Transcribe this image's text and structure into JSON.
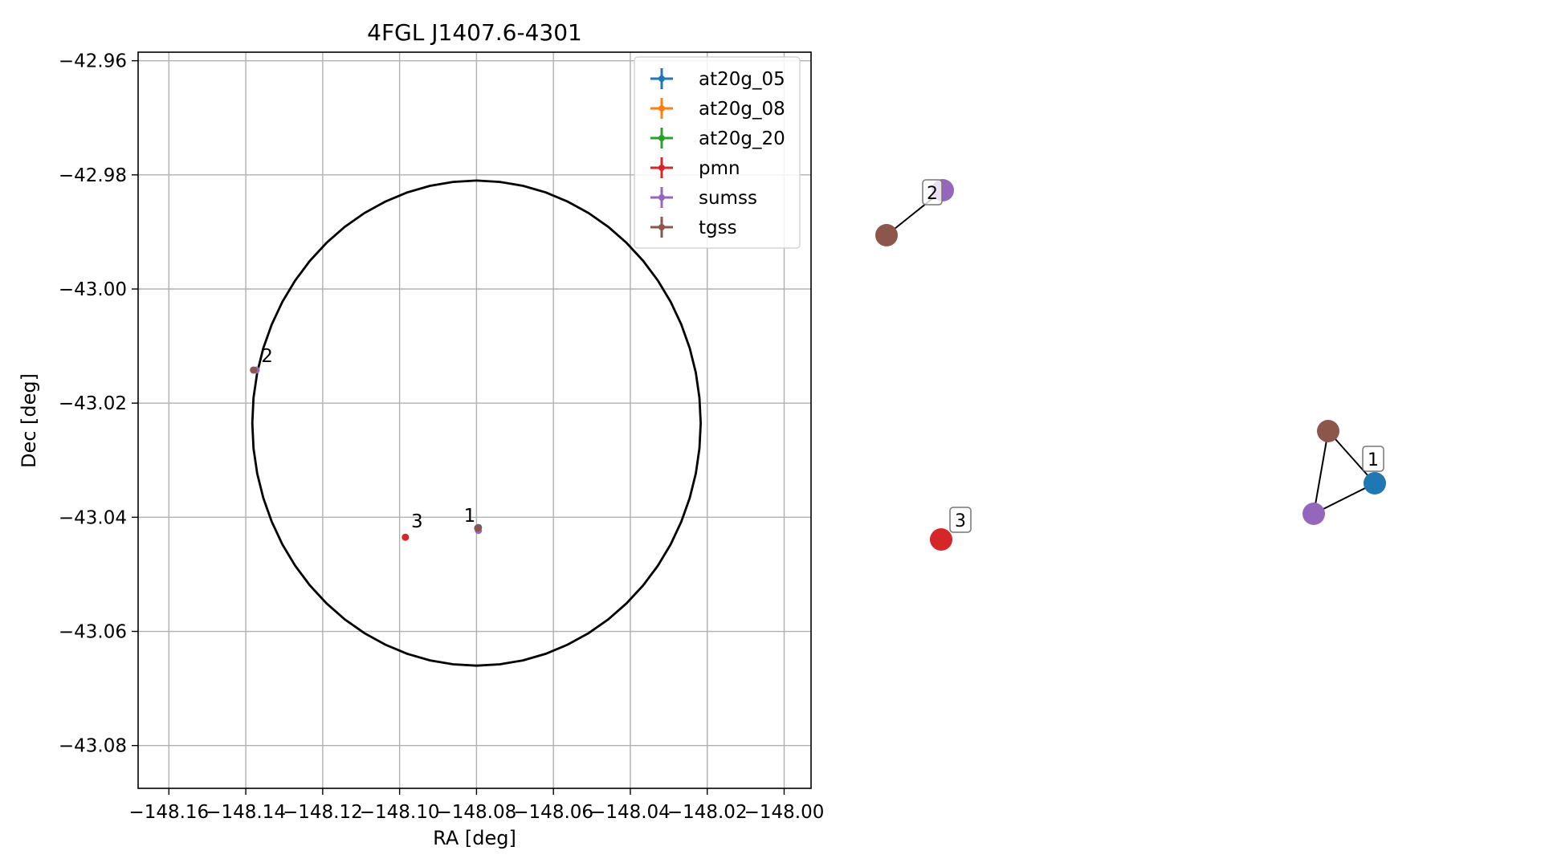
{
  "chart_data": [
    {
      "type": "scatter",
      "title": "4FGL J1407.6-4301",
      "xlabel": "RA [deg]",
      "ylabel": "Dec [deg]",
      "xlim": [
        -148.168,
        -147.993
      ],
      "ylim": [
        -43.0875,
        -42.9585
      ],
      "x_ticks": [
        -148.16,
        -148.14,
        -148.12,
        -148.1,
        -148.08,
        -148.06,
        -148.04,
        -148.02,
        -148.0
      ],
      "x_tick_labels": [
        "−148.16",
        "−148.14",
        "−148.12",
        "−148.10",
        "−148.08",
        "−148.06",
        "−148.04",
        "−148.02",
        "−148.00"
      ],
      "y_ticks": [
        -42.96,
        -42.98,
        -43.0,
        -43.02,
        -43.04,
        -43.06,
        -43.08
      ],
      "y_tick_labels": [
        "−42.96",
        "−42.98",
        "−43.00",
        "−43.02",
        "−43.04",
        "−43.06",
        "−43.08"
      ],
      "grid": true,
      "legend_position": "upper right",
      "ellipse": {
        "center": [
          -148.08,
          -43.0235
        ],
        "ra_radius": 0.0583,
        "dec_radius": 0.0425,
        "color": "#000000"
      },
      "series": [
        {
          "name": "at20g_05",
          "color": "#1f77b4",
          "points": [
            {
              "x": -148.0795,
              "y": -43.0418
            }
          ]
        },
        {
          "name": "at20g_08",
          "color": "#ff7f0e",
          "points": []
        },
        {
          "name": "at20g_20",
          "color": "#2ca02c",
          "points": []
        },
        {
          "name": "pmn",
          "color": "#d62728",
          "points": [
            {
              "x": -148.0985,
              "y": -43.0435
            }
          ]
        },
        {
          "name": "sumss",
          "color": "#9467bd",
          "points": [
            {
              "x": -148.0795,
              "y": -43.0423
            },
            {
              "x": -148.1373,
              "y": -43.0142
            }
          ]
        },
        {
          "name": "tgss",
          "color": "#8c564b",
          "points": [
            {
              "x": -148.0797,
              "y": -43.0419
            },
            {
              "x": -148.138,
              "y": -43.0142
            }
          ]
        }
      ],
      "annotations": [
        {
          "text": "1",
          "x": -148.0833,
          "y": -43.0408
        },
        {
          "text": "2",
          "x": -148.136,
          "y": -43.0128
        },
        {
          "text": "3",
          "x": -148.097,
          "y": -43.0418
        }
      ]
    },
    {
      "type": "network",
      "clusters": [
        {
          "label": "1",
          "nodes": [
            "at20g_05",
            "tgss",
            "sumss"
          ],
          "edges": [
            [
              "tgss",
              "at20g_05"
            ],
            [
              "at20g_05",
              "sumss"
            ],
            [
              "sumss",
              "tgss"
            ]
          ]
        },
        {
          "label": "2",
          "nodes": [
            "sumss",
            "tgss"
          ],
          "edges": [
            [
              "tgss",
              "sumss"
            ]
          ]
        },
        {
          "label": "3",
          "nodes": [
            "pmn"
          ],
          "edges": []
        }
      ]
    }
  ]
}
